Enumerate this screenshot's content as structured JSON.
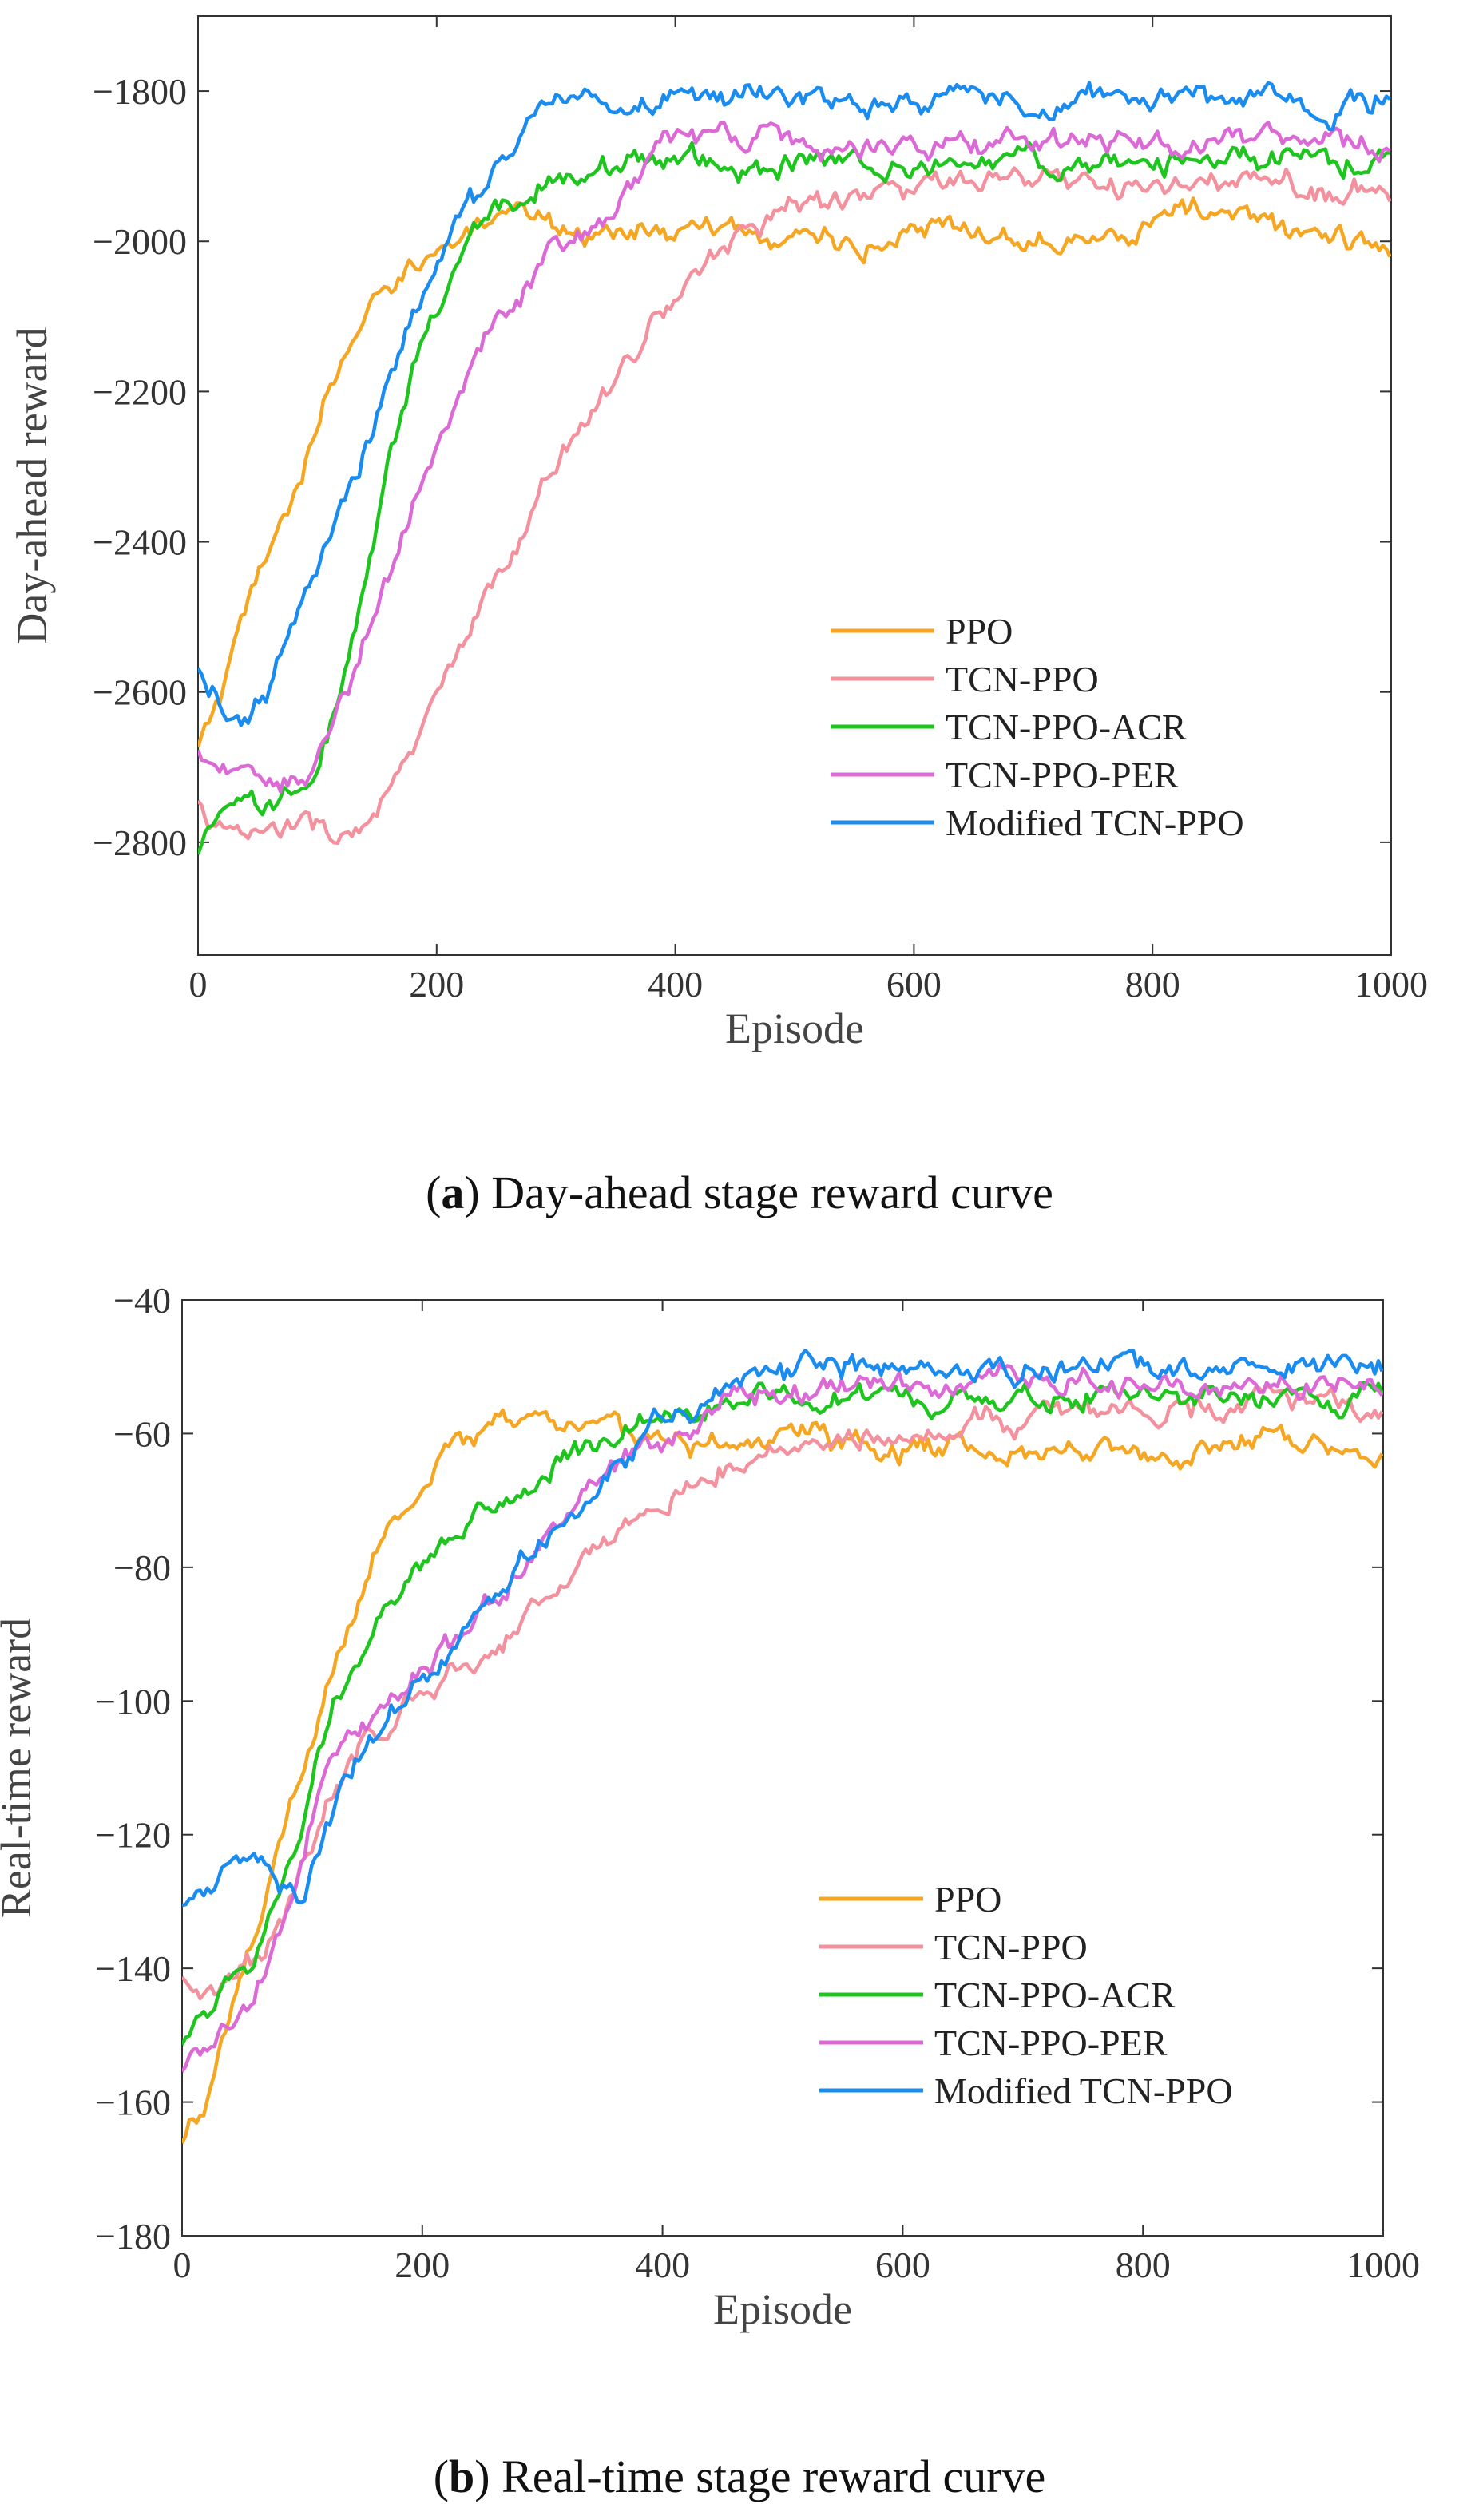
{
  "colors": {
    "PPO": "#f5a623",
    "TCN-PPO": "#f4919e",
    "TCN-PPO-ACR": "#1fc51f",
    "TCN-PPO-PER": "#dc6ad6",
    "Modified TCN-PPO": "#1a8cf0"
  },
  "captions": {
    "a_label": "a",
    "a_text": " Day-ahead stage reward curve",
    "b_label": "b",
    "b_text": " Real-time stage reward curve"
  },
  "chart_data": [
    {
      "type": "line",
      "id": "a",
      "xlabel": "Episode",
      "ylabel": "Day-ahead reward",
      "xlim": [
        0,
        1000
      ],
      "ylim": [
        -2950,
        -1700
      ],
      "xticks": [
        0,
        200,
        400,
        600,
        800,
        1000
      ],
      "yticks": [
        -2800,
        -2600,
        -2400,
        -2200,
        -2000,
        -1800
      ],
      "legend_loc": "lower-right",
      "series": [
        {
          "name": "PPO",
          "x": [
            0,
            20,
            40,
            60,
            80,
            100,
            120,
            140,
            160,
            180,
            200,
            250,
            300,
            350,
            400,
            450,
            500,
            550,
            600,
            650,
            700,
            750,
            800,
            850,
            900,
            950,
            1000
          ],
          "values": [
            -2680,
            -2600,
            -2500,
            -2420,
            -2330,
            -2250,
            -2170,
            -2110,
            -2060,
            -2030,
            -2000,
            -1985,
            -1975,
            -1990,
            -1985,
            -1990,
            -1990,
            -2000,
            -1995,
            -1990,
            -1985,
            -1980,
            -1975,
            -1960,
            -1980,
            -1990,
            -2020
          ]
        },
        {
          "name": "TCN-PPO",
          "x": [
            0,
            30,
            60,
            90,
            120,
            150,
            180,
            200,
            230,
            260,
            290,
            320,
            350,
            380,
            410,
            440,
            470,
            500,
            550,
            600,
            650,
            700,
            750,
            800,
            850,
            900,
            950,
            1000
          ],
          "values": [
            -2750,
            -2800,
            -2790,
            -2780,
            -2790,
            -2760,
            -2690,
            -2610,
            -2530,
            -2430,
            -2330,
            -2250,
            -2170,
            -2110,
            -2060,
            -2010,
            -1970,
            -1950,
            -1940,
            -1930,
            -1925,
            -1930,
            -1925,
            -1930,
            -1925,
            -1930,
            -1925,
            -1930
          ]
        },
        {
          "name": "TCN-PPO-ACR",
          "x": [
            0,
            20,
            40,
            60,
            80,
            100,
            120,
            140,
            160,
            180,
            200,
            220,
            240,
            260,
            280,
            300,
            330,
            360,
            400,
            450,
            500,
            550,
            600,
            650,
            700,
            750,
            800,
            850,
            900,
            950,
            1000
          ],
          "values": [
            -2820,
            -2770,
            -2760,
            -2760,
            -2730,
            -2710,
            -2600,
            -2470,
            -2300,
            -2180,
            -2090,
            -2020,
            -1980,
            -1950,
            -1930,
            -1910,
            -1895,
            -1890,
            -1890,
            -1895,
            -1900,
            -1895,
            -1890,
            -1895,
            -1895,
            -1900,
            -1895,
            -1890,
            -1895,
            -1890,
            -1885
          ]
        },
        {
          "name": "TCN-PPO-PER",
          "x": [
            0,
            30,
            60,
            90,
            110,
            130,
            150,
            170,
            190,
            210,
            230,
            250,
            270,
            300,
            330,
            360,
            400,
            450,
            500,
            550,
            600,
            650,
            700,
            750,
            800,
            850,
            900,
            950,
            1000
          ],
          "values": [
            -2680,
            -2720,
            -2730,
            -2700,
            -2650,
            -2570,
            -2480,
            -2390,
            -2310,
            -2240,
            -2180,
            -2120,
            -2070,
            -2020,
            -1980,
            -1920,
            -1870,
            -1870,
            -1865,
            -1870,
            -1865,
            -1870,
            -1870,
            -1870,
            -1865,
            -1860,
            -1865,
            -1870,
            -1870
          ]
        },
        {
          "name": "Modified TCN-PPO",
          "x": [
            0,
            20,
            40,
            60,
            80,
            100,
            120,
            140,
            160,
            180,
            200,
            220,
            240,
            260,
            280,
            300,
            330,
            360,
            400,
            450,
            500,
            550,
            600,
            650,
            700,
            750,
            800,
            850,
            900,
            950,
            1000
          ],
          "values": [
            -2580,
            -2620,
            -2650,
            -2600,
            -2520,
            -2450,
            -2360,
            -2280,
            -2190,
            -2100,
            -2020,
            -1970,
            -1930,
            -1890,
            -1850,
            -1820,
            -1810,
            -1815,
            -1810,
            -1815,
            -1815,
            -1810,
            -1815,
            -1810,
            -1815,
            -1810,
            -1810,
            -1815,
            -1815,
            -1810,
            -1815
          ]
        }
      ]
    },
    {
      "type": "line",
      "id": "b",
      "xlabel": "Episode",
      "ylabel": "Real-time reward",
      "xlim": [
        0,
        1000
      ],
      "ylim": [
        -180,
        -40
      ],
      "xticks": [
        0,
        200,
        400,
        600,
        800,
        1000
      ],
      "yticks": [
        -180,
        -160,
        -140,
        -120,
        -100,
        -80,
        -60,
        -40
      ],
      "legend_loc": "lower-right",
      "series": [
        {
          "name": "PPO",
          "x": [
            0,
            20,
            40,
            60,
            80,
            100,
            120,
            140,
            160,
            180,
            200,
            220,
            250,
            300,
            350,
            400,
            450,
            500,
            550,
            600,
            650,
            700,
            750,
            800,
            850,
            900,
            950,
            1000
          ],
          "values": [
            -165,
            -160,
            -148,
            -135,
            -122,
            -110,
            -98,
            -88,
            -79,
            -72,
            -66,
            -61,
            -60,
            -58,
            -59,
            -60,
            -62,
            -61,
            -61,
            -62,
            -61,
            -62,
            -61,
            -63,
            -62,
            -61,
            -61,
            -62
          ]
        },
        {
          "name": "TCN-PPO",
          "x": [
            0,
            30,
            60,
            90,
            120,
            150,
            180,
            210,
            240,
            270,
            300,
            330,
            360,
            400,
            450,
            500,
            550,
            600,
            650,
            700,
            750,
            800,
            850,
            900,
            950,
            1000
          ],
          "values": [
            -140,
            -145,
            -140,
            -128,
            -115,
            -107,
            -101,
            -98,
            -94,
            -90,
            -84,
            -80,
            -77,
            -70,
            -65,
            -62,
            -60,
            -59,
            -58,
            -58,
            -57,
            -57,
            -56,
            -56,
            -56,
            -57
          ]
        },
        {
          "name": "TCN-PPO-ACR",
          "x": [
            0,
            30,
            60,
            90,
            110,
            130,
            150,
            170,
            190,
            210,
            230,
            260,
            290,
            320,
            350,
            400,
            450,
            500,
            550,
            600,
            650,
            700,
            750,
            800,
            850,
            900,
            950,
            1000
          ],
          "values": [
            -150,
            -145,
            -138,
            -125,
            -110,
            -100,
            -93,
            -86,
            -82,
            -79,
            -75,
            -72,
            -68,
            -64,
            -61,
            -57,
            -55,
            -54,
            -54,
            -55,
            -54,
            -55,
            -54,
            -54,
            -55,
            -54,
            -54,
            -54
          ]
        },
        {
          "name": "TCN-PPO-PER",
          "x": [
            0,
            30,
            60,
            90,
            120,
            150,
            180,
            210,
            240,
            270,
            300,
            330,
            360,
            400,
            450,
            500,
            550,
            600,
            650,
            700,
            750,
            800,
            850,
            900,
            950,
            1000
          ],
          "values": [
            -155,
            -150,
            -145,
            -128,
            -112,
            -105,
            -100,
            -94,
            -88,
            -83,
            -77,
            -71,
            -66,
            -61,
            -56,
            -54,
            -53,
            -53,
            -52,
            -53,
            -52,
            -52,
            -53,
            -52,
            -52,
            -53
          ]
        },
        {
          "name": "Modified TCN-PPO",
          "x": [
            0,
            20,
            40,
            60,
            80,
            100,
            120,
            140,
            160,
            180,
            200,
            230,
            260,
            290,
            320,
            350,
            400,
            450,
            500,
            550,
            600,
            650,
            700,
            750,
            800,
            850,
            900,
            950,
            1000
          ],
          "values": [
            -130,
            -127,
            -125,
            -123,
            -126,
            -128,
            -118,
            -110,
            -104,
            -99,
            -95,
            -90,
            -84,
            -79,
            -72,
            -66,
            -58,
            -53,
            -51,
            -50,
            -50,
            -50,
            -50,
            -50,
            -50,
            -50,
            -50,
            -50,
            -50
          ]
        }
      ]
    }
  ]
}
